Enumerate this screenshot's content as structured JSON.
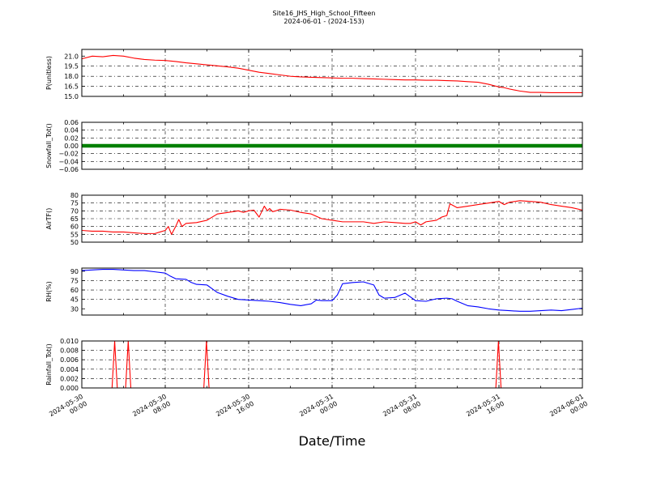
{
  "figure": {
    "title": "Site16_JHS_High_School_Fifteen",
    "subtitle": "2024-06-01 - (2024-153)",
    "xlabel": "Date/Time",
    "x_ticks": [
      {
        "line1": "2024-05-30",
        "line2": "00:00"
      },
      {
        "line1": "2024-05-30",
        "line2": "08:00"
      },
      {
        "line1": "2024-05-30",
        "line2": "16:00"
      },
      {
        "line1": "2024-05-31",
        "line2": "00:00"
      },
      {
        "line1": "2024-05-31",
        "line2": "08:00"
      },
      {
        "line1": "2024-05-31",
        "line2": "16:00"
      },
      {
        "line1": "2024-06-01",
        "line2": "00:00"
      }
    ]
  },
  "chart_data": [
    {
      "type": "line",
      "ylabel": "P(unitless)",
      "ylim": [
        15.0,
        22.0
      ],
      "yticks": [
        "15.0",
        "16.5",
        "18.0",
        "19.5",
        "21.0"
      ],
      "ytick_values": [
        15.0,
        16.5,
        18.0,
        19.5,
        21.0
      ],
      "xlim_hours": [
        0,
        48
      ],
      "grid": true,
      "color": "#ff0000",
      "series": [
        {
          "x_hours": [
            0,
            1,
            2,
            3,
            4,
            5,
            6,
            7,
            8,
            9,
            10,
            11,
            12,
            13,
            14,
            15,
            16,
            17,
            18,
            19,
            20,
            21,
            22,
            23,
            24,
            25,
            26,
            27,
            28,
            29,
            30,
            31,
            32,
            33,
            34,
            35,
            36,
            37,
            38,
            39,
            40,
            40.5,
            41,
            42,
            43,
            44,
            45,
            46,
            47,
            48
          ],
          "values": [
            20.6,
            21.0,
            20.9,
            21.1,
            21.0,
            20.7,
            20.5,
            20.4,
            20.35,
            20.2,
            20.0,
            19.85,
            19.7,
            19.55,
            19.4,
            19.2,
            18.9,
            18.6,
            18.4,
            18.2,
            18.0,
            17.9,
            17.85,
            17.8,
            17.75,
            17.7,
            17.7,
            17.65,
            17.6,
            17.55,
            17.5,
            17.45,
            17.45,
            17.4,
            17.4,
            17.35,
            17.3,
            17.2,
            17.1,
            16.8,
            16.4,
            16.3,
            16.1,
            15.8,
            15.6,
            15.6,
            15.55,
            15.55,
            15.55,
            15.55
          ]
        }
      ]
    },
    {
      "type": "scatter",
      "ylabel": "Snowfall_Tot()",
      "ylim": [
        -0.06,
        0.06
      ],
      "yticks": [
        "−0.06",
        "−0.04",
        "−0.02",
        "0.00",
        "0.02",
        "0.04",
        "0.06"
      ],
      "ytick_values": [
        -0.06,
        -0.04,
        -0.02,
        0.0,
        0.02,
        0.04,
        0.06
      ],
      "xlim_hours": [
        0,
        48
      ],
      "grid": true,
      "color": "#008000",
      "series": [
        {
          "x_hours": [
            0,
            48
          ],
          "values": [
            0.0,
            0.0
          ]
        }
      ]
    },
    {
      "type": "line",
      "ylabel": "AirTF()",
      "ylim": [
        50,
        80
      ],
      "yticks": [
        "50",
        "55",
        "60",
        "65",
        "70",
        "75",
        "80"
      ],
      "ytick_values": [
        50,
        55,
        60,
        65,
        70,
        75,
        80
      ],
      "xlim_hours": [
        0,
        48
      ],
      "grid": true,
      "color": "#ff0000",
      "series": [
        {
          "x_hours": [
            0,
            1,
            2,
            3,
            4,
            5,
            6,
            6.5,
            7,
            7.5,
            8,
            8.3,
            8.6,
            9,
            9.3,
            9.6,
            10,
            11,
            12,
            12.5,
            13,
            14,
            15,
            15.5,
            16,
            16.5,
            17,
            17.5,
            17.8,
            18,
            18.3,
            18.6,
            19,
            20,
            21,
            22,
            23,
            24,
            25,
            26,
            27,
            28,
            29,
            30,
            31,
            31.5,
            32,
            32.5,
            33,
            34,
            34.5,
            35,
            35.3,
            36,
            37,
            38,
            39,
            40,
            40.5,
            41,
            42,
            43,
            44,
            45,
            46,
            47,
            48
          ],
          "values": [
            57.5,
            57.0,
            57.0,
            56.5,
            56.5,
            56.0,
            55.5,
            55.5,
            55.5,
            56.5,
            57.5,
            60.0,
            55.0,
            60.0,
            64.5,
            60.0,
            62.0,
            62.5,
            64.0,
            66.0,
            68.0,
            69.0,
            70.0,
            69.0,
            70.0,
            70.5,
            66.0,
            73.0,
            70.0,
            71.5,
            69.5,
            70.0,
            71.0,
            70.5,
            69.0,
            68.0,
            65.0,
            64.0,
            63.0,
            63.0,
            63.0,
            62.0,
            63.0,
            62.5,
            62.0,
            62.0,
            63.0,
            61.0,
            63.0,
            64.0,
            66.0,
            67.0,
            74.5,
            72.0,
            73.0,
            74.0,
            75.0,
            76.0,
            74.0,
            75.5,
            76.5,
            76.0,
            75.5,
            74.0,
            73.0,
            72.0,
            70.5
          ]
        }
      ]
    },
    {
      "type": "line",
      "ylabel": "RH(%)",
      "ylim": [
        20,
        95
      ],
      "yticks": [
        "30",
        "45",
        "60",
        "75",
        "90"
      ],
      "ytick_values": [
        30,
        45,
        60,
        75,
        90
      ],
      "xlim_hours": [
        0,
        48
      ],
      "grid": true,
      "color": "#0000ff",
      "series": [
        {
          "x_hours": [
            0,
            1,
            2,
            3,
            4,
            5,
            6,
            7,
            8,
            8.5,
            9,
            10,
            10.5,
            11,
            12,
            12.5,
            13,
            14,
            15,
            16,
            17,
            18,
            19,
            20,
            21,
            22,
            22.5,
            23,
            24,
            24.5,
            25,
            26,
            27,
            28,
            28.5,
            29,
            30,
            31,
            32,
            33,
            34,
            35,
            35.5,
            36,
            37,
            38,
            39,
            40,
            41,
            42,
            43,
            44,
            45,
            46,
            47,
            48
          ],
          "values": [
            91,
            92,
            93,
            93,
            92,
            91,
            91,
            89,
            87,
            82,
            78,
            77,
            72,
            69,
            68,
            62,
            56,
            50,
            45,
            44,
            43,
            42,
            40,
            37,
            35,
            38,
            44,
            43,
            43,
            52,
            70,
            72,
            73,
            68,
            52,
            47,
            48,
            55,
            43,
            42,
            46,
            47,
            46,
            42,
            35,
            33,
            30,
            28,
            27,
            26,
            26,
            27,
            28,
            27,
            29,
            31
          ]
        }
      ]
    },
    {
      "type": "line",
      "ylabel": "Rainfall_Tot()",
      "ylim": [
        0.0,
        0.01
      ],
      "yticks": [
        "0.000",
        "0.002",
        "0.004",
        "0.006",
        "0.008",
        "0.010"
      ],
      "ytick_values": [
        0.0,
        0.002,
        0.004,
        0.006,
        0.008,
        0.01
      ],
      "xlim_hours": [
        0,
        48
      ],
      "grid": true,
      "color": "#ff0000",
      "series": [
        {
          "x_hours": [
            0,
            2.9,
            3.15,
            3.4,
            4.2,
            4.45,
            4.7,
            11.7,
            11.95,
            12.2,
            39.7,
            39.95,
            40.2,
            48
          ],
          "values": [
            0,
            0,
            0.01,
            0,
            0,
            0.01,
            0,
            0,
            0.01,
            0,
            0,
            0.01,
            0,
            0
          ]
        }
      ]
    }
  ]
}
